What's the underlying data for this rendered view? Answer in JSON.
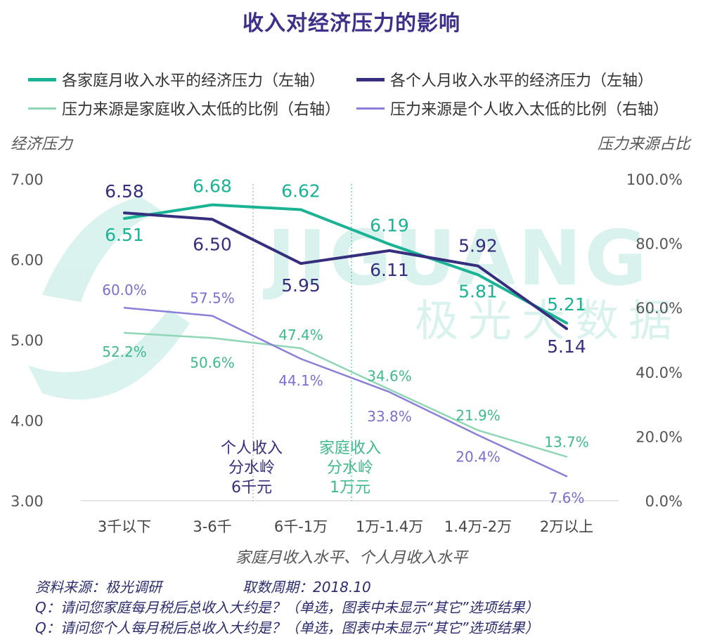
{
  "title": "收入对经济压力的影响",
  "legend": [
    {
      "label": "各家庭月收入水平的经济压力（左轴）",
      "color": "#1ab394",
      "weight": "thick"
    },
    {
      "label": "各个人月收入水平的经济压力（左轴）",
      "color": "#352f7e",
      "weight": "thick"
    },
    {
      "label": "压力来源是家庭收入太低的比例（右轴）",
      "color": "#8fd6b6",
      "weight": "thin"
    },
    {
      "label": "压力来源是个人收入太低的比例（右轴）",
      "color": "#8a7fd6",
      "weight": "thin"
    }
  ],
  "y_left_title": "经济压力",
  "y_right_title": "压力来源占比",
  "x_title": "家庭月收入水平、个人月收入水平",
  "watermark": {
    "latin": "JIGUANG",
    "cjk": "极光大数据"
  },
  "annotations": {
    "personal": {
      "lines": [
        "个人收入",
        "分水岭",
        "6千元"
      ],
      "color": "#352f7e"
    },
    "family": {
      "lines": [
        "家庭收入",
        "分水岭",
        "1万元"
      ],
      "color": "#3dbb8a"
    }
  },
  "footer": {
    "source": "资料来源：极光调研",
    "period": "取数周期：2018.10",
    "q1": "Q：请问您家庭每月税后总收入大约是？（单选，图表中未显示“其它”选项结果）",
    "q2": "Q：请问您个人每月税后总收入大约是？（单选，图表中未显示“其它”选项结果）"
  },
  "chart_data": {
    "type": "line",
    "categories": [
      "3千以下",
      "3-6千",
      "6千-1万",
      "1万-1.4万",
      "1.4万-2万",
      "2万以上"
    ],
    "y_left": {
      "ticks": [
        "7.00",
        "6.00",
        "5.00",
        "4.00",
        "3.00"
      ],
      "range": [
        3,
        7
      ]
    },
    "y_right": {
      "ticks": [
        "100.0%",
        "80.0%",
        "60.0%",
        "40.0%",
        "20.0%",
        "0.0%"
      ],
      "range": [
        0,
        100
      ]
    },
    "series": [
      {
        "name": "各家庭月收入水平的经济压力（左轴）",
        "axis": "left",
        "color": "#1ab394",
        "width": 4,
        "values": [
          6.51,
          6.68,
          6.62,
          6.19,
          5.81,
          5.21
        ],
        "labels": [
          "6.51",
          "6.68",
          "6.62",
          "6.19",
          "5.81",
          "5.21"
        ],
        "label_color": "#1ab394"
      },
      {
        "name": "各个人月收入水平的经济压力（左轴）",
        "axis": "left",
        "color": "#352f7e",
        "width": 4,
        "values": [
          6.58,
          6.5,
          5.95,
          6.11,
          5.92,
          5.14
        ],
        "labels": [
          "6.58",
          "6.50",
          "5.95",
          "6.11",
          "5.92",
          "5.14"
        ],
        "label_color": "#352f7e"
      },
      {
        "name": "压力来源是家庭收入太低的比例（右轴）",
        "axis": "right",
        "color": "#8fd6b6",
        "width": 2.5,
        "values": [
          52.2,
          50.6,
          47.4,
          34.6,
          21.9,
          13.7
        ],
        "labels": [
          "52.2%",
          "50.6%",
          "47.4%",
          "34.6%",
          "21.9%",
          "13.7%"
        ],
        "label_color": "#3dbb8a"
      },
      {
        "name": "压力来源是个人收入太低的比例（右轴）",
        "axis": "right",
        "color": "#8a7fd6",
        "width": 2.5,
        "values": [
          60.0,
          57.5,
          44.1,
          33.8,
          20.4,
          7.6
        ],
        "labels": [
          "60.0%",
          "57.5%",
          "44.1%",
          "33.8%",
          "20.4%",
          "7.6%"
        ],
        "label_color": "#7a6fcf"
      }
    ]
  }
}
